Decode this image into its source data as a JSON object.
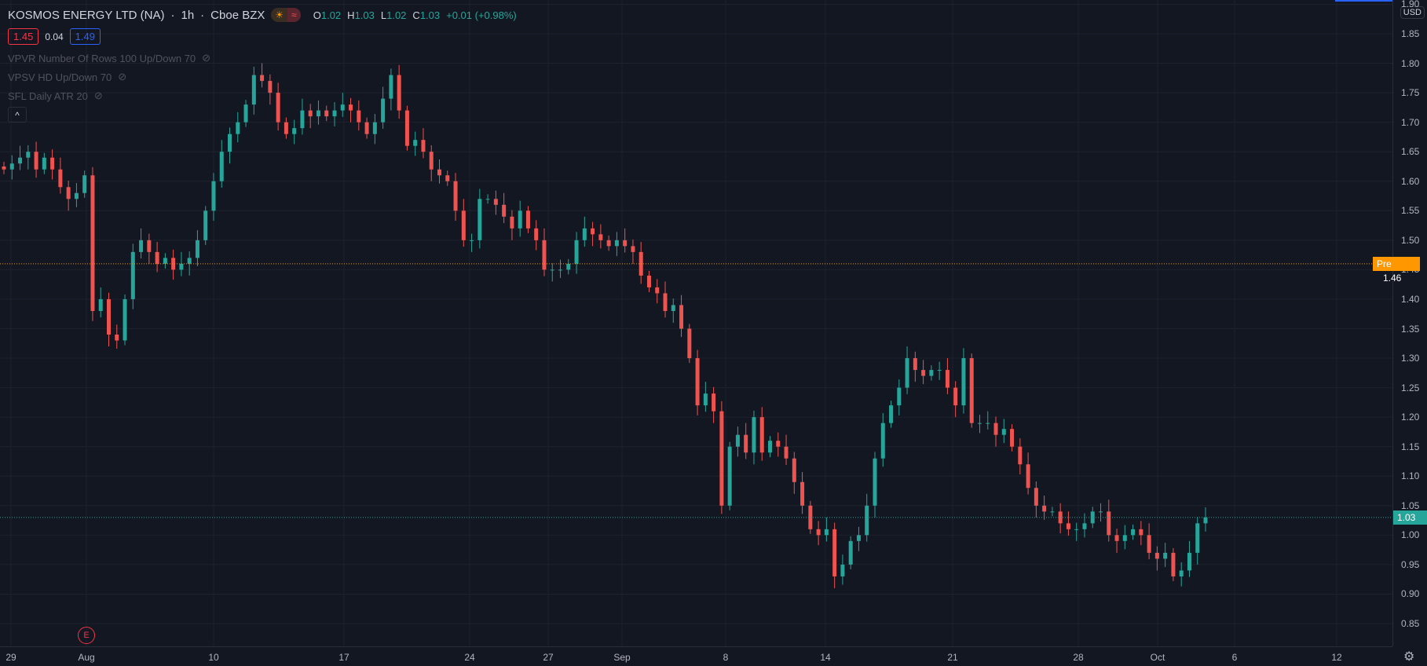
{
  "header": {
    "symbol": "KOSMOS ENERGY LTD (NA)",
    "interval": "1h",
    "exchange": "Cboe BZX",
    "session_icons": [
      "sun-icon",
      "wave-icon"
    ],
    "ohlc": {
      "o_label": "O",
      "o": "1.02",
      "h_label": "H",
      "h": "1.03",
      "l_label": "L",
      "l": "1.02",
      "c_label": "C",
      "c": "1.03",
      "change": "+0.01 (+0.98%)"
    }
  },
  "bid_ask": {
    "bid": "1.45",
    "spread": "0.04",
    "ask": "1.49"
  },
  "indicators": [
    {
      "label": "VPVR Number Of Rows 100 Up/Down 70"
    },
    {
      "label": "VPSV HD Up/Down 70"
    },
    {
      "label": "SFL Daily ATR 20"
    }
  ],
  "collapse_label": "^",
  "earnings_marker": "E",
  "price_axis": {
    "currency": "USD",
    "ticks": [
      "1.90",
      "1.85",
      "1.80",
      "1.75",
      "1.70",
      "1.65",
      "1.60",
      "1.55",
      "1.50",
      "1.45",
      "1.40",
      "1.35",
      "1.30",
      "1.25",
      "1.20",
      "1.15",
      "1.10",
      "1.05",
      "1.00",
      "0.95",
      "0.90",
      "0.85"
    ],
    "pre_label": "Pre",
    "pre_price": "1.46",
    "last_price": "1.03"
  },
  "time_axis": {
    "ticks": [
      "29",
      "Aug",
      "10",
      "17",
      "24",
      "27",
      "Sep",
      "8",
      "14",
      "21",
      "28",
      "Oct",
      "6",
      "12"
    ]
  },
  "colors": {
    "up": "#26a69a",
    "down": "#ef5350",
    "pre": "#ff9800",
    "bg": "#131722"
  },
  "chart_data": {
    "type": "candlestick",
    "ylim": [
      0.82,
      1.91
    ],
    "interval": "1h",
    "closes": [
      1.62,
      1.63,
      1.64,
      1.65,
      1.62,
      1.64,
      1.62,
      1.59,
      1.57,
      1.58,
      1.61,
      1.38,
      1.4,
      1.34,
      1.33,
      1.4,
      1.48,
      1.5,
      1.48,
      1.46,
      1.47,
      1.45,
      1.46,
      1.47,
      1.5,
      1.55,
      1.6,
      1.65,
      1.68,
      1.7,
      1.73,
      1.78,
      1.77,
      1.75,
      1.7,
      1.68,
      1.69,
      1.72,
      1.71,
      1.72,
      1.71,
      1.72,
      1.73,
      1.72,
      1.7,
      1.68,
      1.7,
      1.74,
      1.78,
      1.72,
      1.66,
      1.67,
      1.65,
      1.62,
      1.61,
      1.6,
      1.55,
      1.5,
      1.5,
      1.57,
      1.57,
      1.56,
      1.54,
      1.52,
      1.55,
      1.52,
      1.5,
      1.45,
      1.45,
      1.45,
      1.46,
      1.5,
      1.52,
      1.51,
      1.5,
      1.49,
      1.5,
      1.49,
      1.48,
      1.44,
      1.42,
      1.41,
      1.38,
      1.39,
      1.35,
      1.3,
      1.22,
      1.24,
      1.21,
      1.05,
      1.15,
      1.17,
      1.14,
      1.2,
      1.14,
      1.16,
      1.15,
      1.13,
      1.09,
      1.05,
      1.01,
      1.0,
      1.01,
      0.93,
      0.95,
      0.99,
      1.0,
      1.05,
      1.13,
      1.19,
      1.22,
      1.25,
      1.3,
      1.28,
      1.27,
      1.28,
      1.28,
      1.25,
      1.22,
      1.3,
      1.19,
      1.19,
      1.19,
      1.17,
      1.18,
      1.15,
      1.12,
      1.08,
      1.05,
      1.04,
      1.04,
      1.02,
      1.01,
      1.01,
      1.02,
      1.04,
      1.04,
      1.0,
      0.99,
      1.0,
      1.01,
      1.0,
      0.97,
      0.96,
      0.97,
      0.93,
      0.94,
      0.97,
      1.02,
      1.03
    ]
  }
}
